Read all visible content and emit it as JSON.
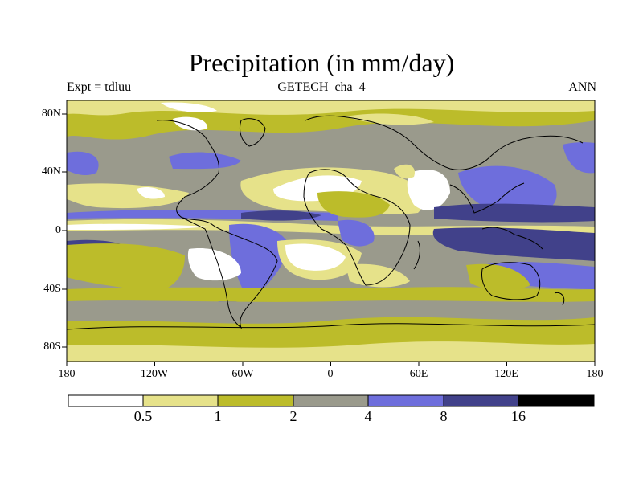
{
  "title": "Precipitation (in mm/day)",
  "subtitle_left": "Expt = tdluu",
  "subtitle_center": "GETECH_cha_4",
  "subtitle_right": "ANN",
  "lat_labels": [
    "80N",
    "40N",
    "0",
    "40S",
    "80S"
  ],
  "lon_labels": [
    "180",
    "120W",
    "60W",
    "0",
    "60E",
    "120E",
    "180"
  ],
  "colorbar": {
    "levels": [
      "0.5",
      "1",
      "2",
      "4",
      "8",
      "16"
    ],
    "colors": [
      "#ffffff",
      "#e6e28a",
      "#bcbc2a",
      "#9a9a8c",
      "#6e6edc",
      "#41418a",
      "#000000"
    ]
  },
  "map_data": {
    "variable": "Precipitation",
    "units": "mm/day",
    "lon_range": [
      -180,
      180
    ],
    "lat_range": [
      -90,
      90
    ],
    "projection": "cylindrical equidistant"
  }
}
